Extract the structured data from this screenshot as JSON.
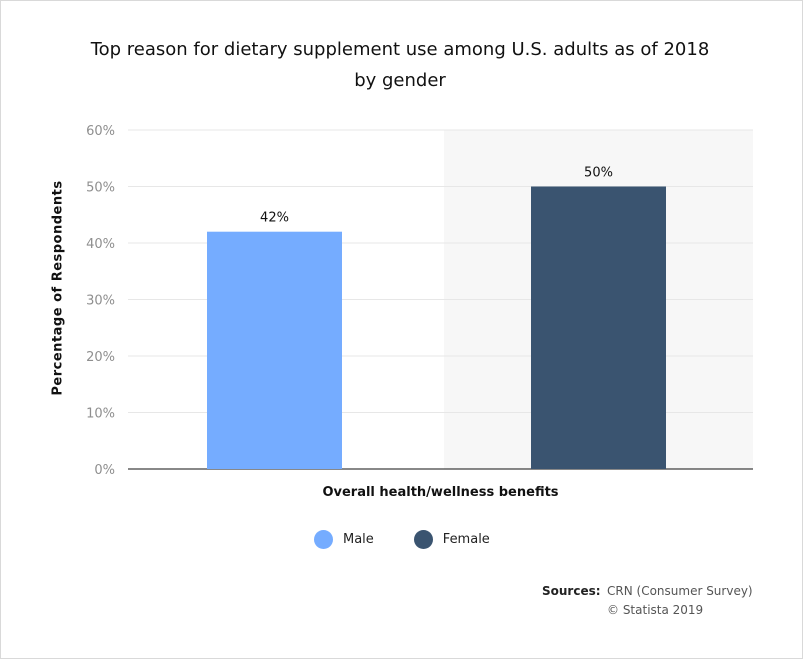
{
  "title": "Top reason for dietary supplement use among U.S. adults as of 2018 by gender",
  "colors": {
    "male": "#75acff",
    "female": "#3a5470",
    "background_band": "#f7f7f7",
    "grid": "#e7e7e7",
    "axis": "#111111",
    "tick_text": "#8f8f8f"
  },
  "chart_data": {
    "type": "bar",
    "title": "Top reason for dietary supplement use among U.S. adults as of 2018 by gender",
    "xlabel": "Overall health/wellness benefits",
    "ylabel": "Percentage of Respondents",
    "ylim": [
      0,
      60
    ],
    "y_ticks": [
      0,
      10,
      20,
      30,
      40,
      50,
      60
    ],
    "y_tick_labels": [
      "0%",
      "10%",
      "20%",
      "30%",
      "40%",
      "50%",
      "60%"
    ],
    "categories": [
      "Overall health/wellness benefits"
    ],
    "series": [
      {
        "name": "Male",
        "values": [
          42
        ],
        "value_label": "42%",
        "color": "#75acff"
      },
      {
        "name": "Female",
        "values": [
          50
        ],
        "value_label": "50%",
        "color": "#3a5470"
      }
    ],
    "grid": true,
    "legend": "bottom"
  },
  "legend": {
    "male": "Male",
    "female": "Female"
  },
  "sources": {
    "label": "Sources:",
    "line1": "CRN (Consumer Survey)",
    "line2": "© Statista 2019"
  }
}
